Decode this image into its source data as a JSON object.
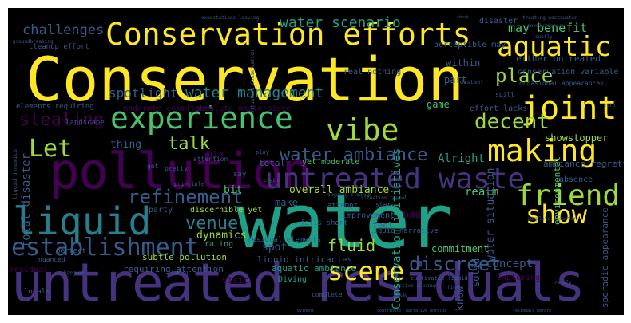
{
  "palette": {
    "yellow": "#fde725",
    "lime": "#a0da39",
    "green": "#4ac16d",
    "teal": "#1fa187",
    "blue": "#277f8e",
    "indigo": "#365c8d",
    "slate": "#46327e",
    "purple": "#440154"
  },
  "words": [
    {
      "text": "Conservation",
      "color": "yellow"
    },
    {
      "text": "water",
      "color": "teal"
    },
    {
      "text": "untreated residuals",
      "color": "slate"
    },
    {
      "text": "pollution",
      "color": "purple"
    },
    {
      "text": "Conservation efforts",
      "color": "yellow"
    },
    {
      "text": "liquid",
      "color": "blue"
    },
    {
      "text": "experience",
      "color": "green"
    },
    {
      "text": "untreated waste",
      "color": "slate"
    },
    {
      "text": "establishment",
      "color": "indigo"
    },
    {
      "text": "aquatic",
      "color": "yellow"
    },
    {
      "text": "joint",
      "color": "yellow"
    },
    {
      "text": "vibe",
      "color": "lime"
    },
    {
      "text": "making",
      "color": "yellow"
    },
    {
      "text": "friend",
      "color": "lime"
    },
    {
      "text": "show",
      "color": "yellow"
    },
    {
      "text": "scene",
      "color": "yellow"
    },
    {
      "text": "Let",
      "color": "lime"
    },
    {
      "text": "water ambiance",
      "color": "indigo"
    },
    {
      "text": "decent",
      "color": "lime"
    },
    {
      "text": "place",
      "color": "lime"
    },
    {
      "text": "refinement",
      "color": "indigo"
    },
    {
      "text": "discreet",
      "color": "indigo"
    },
    {
      "text": "stealing",
      "color": "purple"
    },
    {
      "text": "talk",
      "color": "lime"
    },
    {
      "text": "venue",
      "color": "blue"
    },
    {
      "text": "water scenario",
      "color": "teal"
    },
    {
      "text": "water management",
      "color": "blue"
    },
    {
      "text": "challenges",
      "color": "indigo"
    },
    {
      "text": "spotlight",
      "color": "indigo"
    },
    {
      "text": "fluid",
      "color": "lime"
    },
    {
      "text": "overall ambiance",
      "color": "lime"
    },
    {
      "text": "showstopper",
      "color": "lime"
    },
    {
      "text": "realm",
      "color": "green"
    },
    {
      "text": "may benefit",
      "color": "green"
    },
    {
      "text": "total disaster",
      "color": "indigo"
    },
    {
      "text": "commitment",
      "color": "green"
    },
    {
      "text": "water situation",
      "color": "indigo"
    },
    {
      "text": "Conservation initiatives",
      "color": "teal"
    },
    {
      "text": "Alright",
      "color": "teal"
    },
    {
      "text": "thing",
      "color": "indigo"
    },
    {
      "text": "mix",
      "color": "purple"
    },
    {
      "text": "game",
      "color": "green"
    },
    {
      "text": "part",
      "color": "indigo"
    },
    {
      "text": "bit",
      "color": "green"
    },
    {
      "text": "dynamics",
      "color": "lime"
    },
    {
      "text": "spot",
      "color": "indigo"
    },
    {
      "text": "bad",
      "color": "purple"
    },
    {
      "text": "make",
      "color": "indigo"
    },
    {
      "text": "within",
      "color": "indigo"
    },
    {
      "text": "perceptible may",
      "color": "indigo"
    },
    {
      "text": "absolute masterpiece",
      "color": "purple"
    },
    {
      "text": "moderate commitment",
      "color": "purple"
    },
    {
      "text": "total",
      "color": "indigo"
    },
    {
      "text": "discernible yet",
      "color": "lime"
    },
    {
      "text": "yet moderate",
      "color": "green"
    },
    {
      "text": "liquid intricacies",
      "color": "indigo"
    },
    {
      "text": "subtle pollution",
      "color": "lime"
    },
    {
      "text": "rating",
      "color": "teal"
    },
    {
      "text": "aquatic ambiance",
      "color": "teal"
    },
    {
      "text": "requiring attention",
      "color": "indigo"
    },
    {
      "text": "Diving",
      "color": "teal"
    },
    {
      "text": "concept",
      "color": "indigo"
    },
    {
      "text": "Exploring",
      "color": "purple"
    },
    {
      "text": "visit",
      "color": "purple"
    },
    {
      "text": "solid",
      "color": "indigo"
    },
    {
      "text": "know",
      "color": "indigo"
    },
    {
      "text": "sporadic appearance",
      "color": "indigo"
    },
    {
      "text": "either untreated",
      "color": "indigo"
    },
    {
      "text": "conservation variable",
      "color": "indigo"
    },
    {
      "text": "ambiance regrettably",
      "color": "indigo"
    },
    {
      "text": "effort lacks",
      "color": "indigo"
    },
    {
      "text": "liquid narrative",
      "color": "indigo"
    },
    {
      "text": "environmental",
      "color": "green"
    },
    {
      "text": "residual elements",
      "color": "indigo"
    },
    {
      "text": "cleanup effort",
      "color": "indigo"
    },
    {
      "text": "elements requiring",
      "color": "indigo"
    },
    {
      "text": "landscape",
      "color": "indigo"
    },
    {
      "text": "liquid dynamics",
      "color": "indigo"
    },
    {
      "text": "falls short",
      "color": "indigo"
    },
    {
      "text": "real nothing",
      "color": "indigo"
    },
    {
      "text": "disaster",
      "color": "indigo"
    },
    {
      "text": "spill",
      "color": "indigo"
    },
    {
      "text": "improvement",
      "color": "indigo"
    },
    {
      "text": "feel",
      "color": "indigo"
    },
    {
      "text": "perfect",
      "color": "indigo"
    },
    {
      "text": "attempt",
      "color": "indigo"
    },
    {
      "text": "absence",
      "color": "indigo"
    },
    {
      "text": "party",
      "color": "indigo"
    },
    {
      "text": "say",
      "color": "indigo"
    },
    {
      "text": "got",
      "color": "indigo"
    },
    {
      "text": "pretty",
      "color": "indigo"
    },
    {
      "text": "attention",
      "color": "indigo"
    },
    {
      "text": "play",
      "color": "indigo"
    },
    {
      "text": "star",
      "color": "indigo"
    },
    {
      "text": "cultivated liquid",
      "color": "indigo"
    },
    {
      "text": "active cleanup",
      "color": "indigo"
    },
    {
      "text": "complete disaster",
      "color": "indigo"
    },
    {
      "text": "residual",
      "color": "purple"
    },
    {
      "text": "locale",
      "color": "indigo"
    },
    {
      "text": "complete",
      "color": "indigo"
    },
    {
      "text": "residuals before",
      "color": "indigo"
    },
    {
      "text": "cool",
      "color": "indigo"
    },
    {
      "text": "evident",
      "color": "indigo"
    },
    {
      "text": "contribute",
      "color": "indigo"
    },
    {
      "text": "narrative unfolds",
      "color": "indigo"
    },
    {
      "text": "occasional appearances",
      "color": "indigo"
    },
    {
      "text": "expectations leaving",
      "color": "indigo"
    },
    {
      "text": "treating wastewater",
      "color": "indigo"
    },
    {
      "text": "revolutionary",
      "color": "indigo"
    },
    {
      "text": "groundbreaking",
      "color": "indigo"
    },
    {
      "text": "distant",
      "color": "indigo"
    },
    {
      "text": "subtly",
      "color": "indigo"
    },
    {
      "text": "check",
      "color": "indigo"
    },
    {
      "text": "situation Conservation",
      "color": "indigo"
    },
    {
      "text": "ongoing cleanup",
      "color": "indigo"
    },
    {
      "text": "situation reveal",
      "color": "indigo"
    },
    {
      "text": "principle",
      "color": "indigo"
    },
    {
      "text": "nuanced",
      "color": "indigo"
    },
    {
      "text": "hangout",
      "color": "indigo"
    },
    {
      "text": "taking",
      "color": "indigo"
    },
    {
      "text": "rarely",
      "color": "indigo"
    },
    {
      "text": "Okay",
      "color": "indigo"
    },
    {
      "text": "fine",
      "color": "indigo"
    },
    {
      "text": "zero",
      "color": "indigo"
    },
    {
      "text": "crying",
      "color": "indigo"
    }
  ]
}
